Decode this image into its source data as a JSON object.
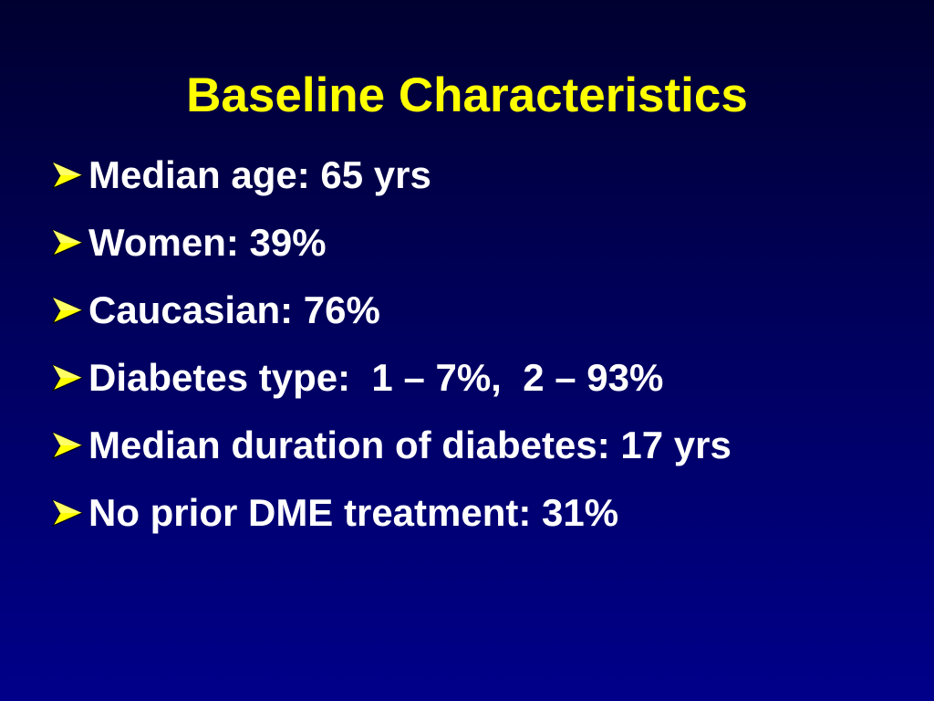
{
  "title": "Baseline Characteristics",
  "bullets": [
    "Median age: 65 yrs",
    "Women: 39%",
    "Caucasian: 76%",
    "Diabetes type:  1 – 7%,  2 – 93%",
    "Median duration of diabetes: 17 yrs",
    "No prior DME treatment: 31%"
  ]
}
